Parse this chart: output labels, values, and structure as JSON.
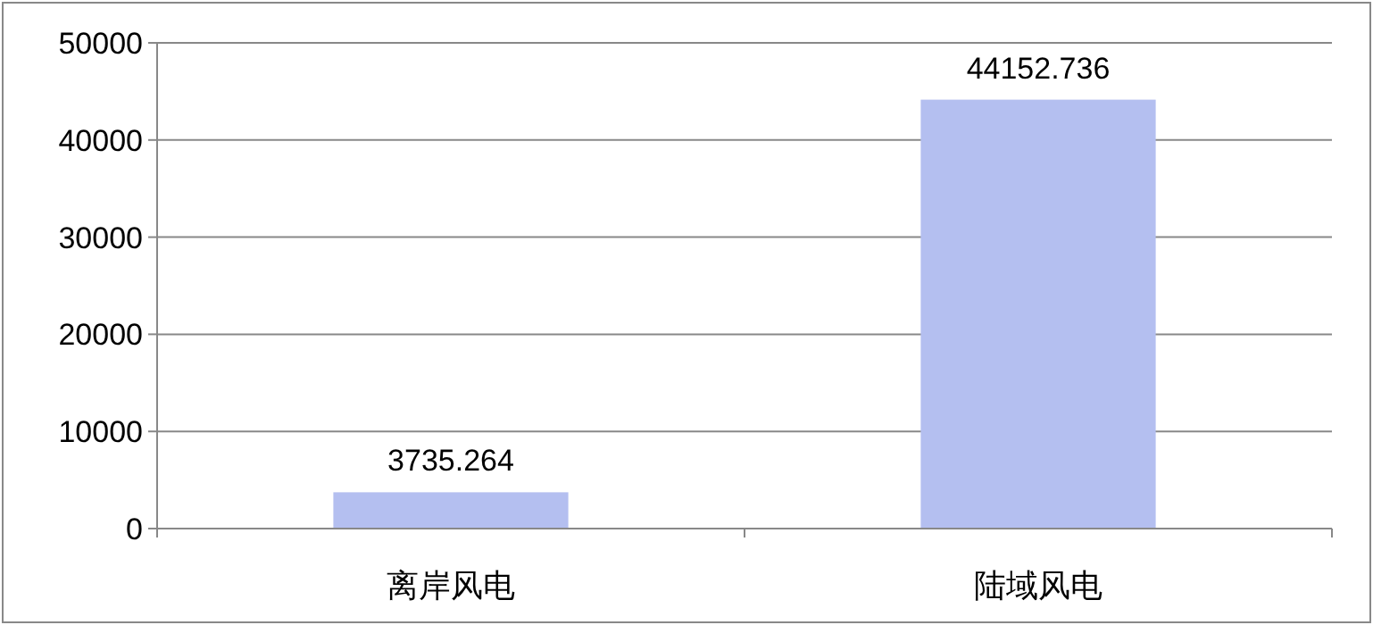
{
  "chart_data": {
    "type": "bar",
    "categories": [
      "离岸风电",
      "陆域风电"
    ],
    "values": [
      3735.264,
      44152.736
    ],
    "color": "#b4bff0",
    "ylim": [
      0,
      50000
    ],
    "yticks": [
      0,
      10000,
      20000,
      30000,
      40000,
      50000
    ],
    "grid": "y",
    "data_labels": true
  }
}
